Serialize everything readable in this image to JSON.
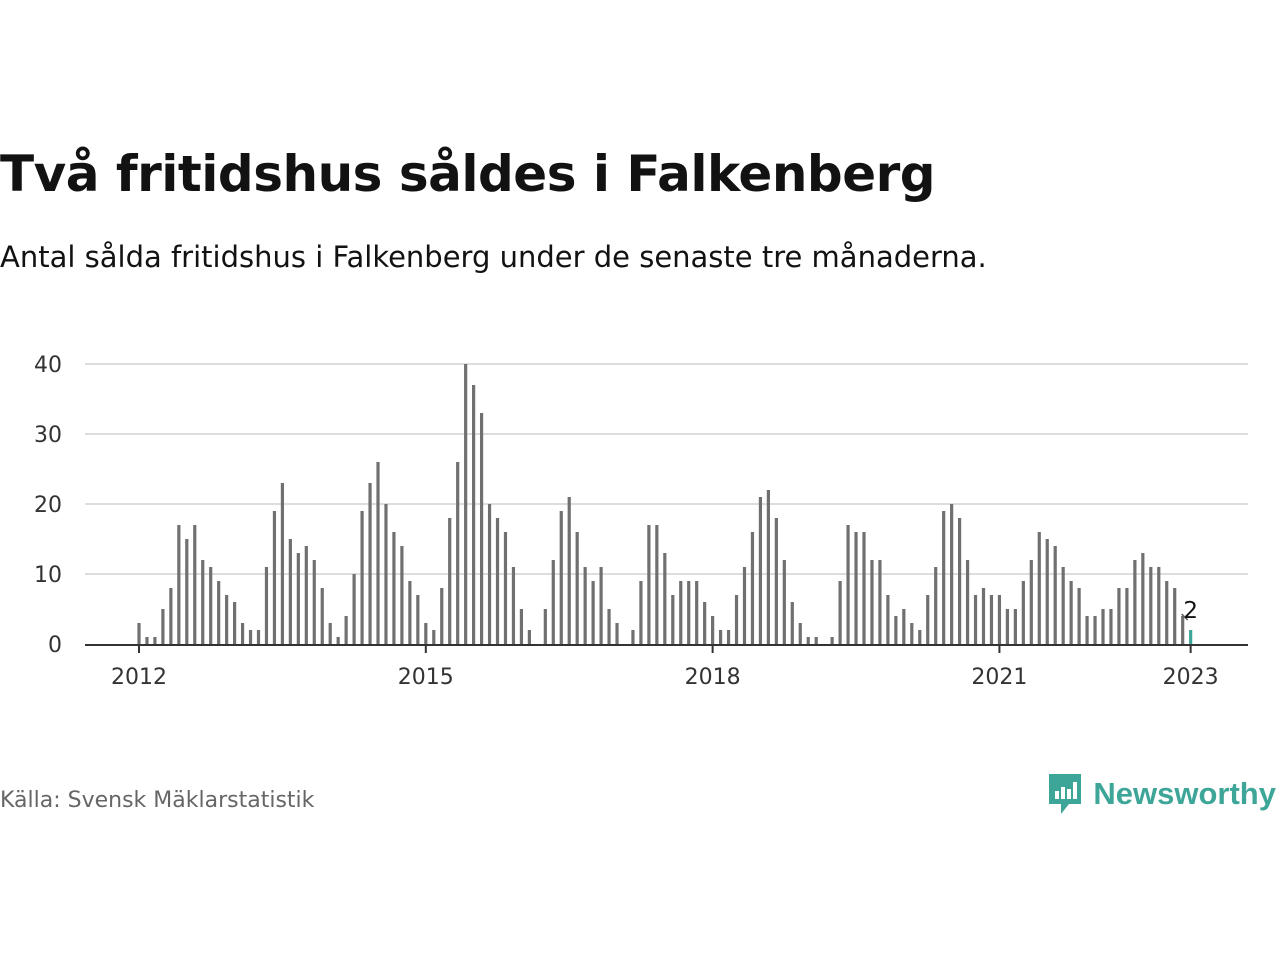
{
  "title": "Två fritidshus såldes i Falkenberg",
  "subtitle": "Antal sålda fritidshus i Falkenberg under de senaste tre månaderna.",
  "source": "Källa: Svensk Mäklarstatistik",
  "brand": {
    "name": "Newsworthy",
    "color": "#3ea699",
    "icon": "newsworthy-logo-icon"
  },
  "colors": {
    "bar": "#707070",
    "highlight": "#3ea699",
    "grid": "#dddddd",
    "axis": "#333333"
  },
  "chart_data": {
    "type": "bar",
    "title": "Två fritidshus såldes i Falkenberg",
    "subtitle": "Antal sålda fritidshus i Falkenberg under de senaste tre månaderna.",
    "start": "2012-01",
    "ylim": [
      0,
      40
    ],
    "yticks": [
      0,
      10,
      20,
      30,
      40
    ],
    "xticks": [
      "2012",
      "2015",
      "2018",
      "2021",
      "2023"
    ],
    "grid": true,
    "highlight_last": true,
    "last_label": "2",
    "values": [
      3,
      1,
      1,
      5,
      8,
      17,
      15,
      17,
      12,
      11,
      9,
      7,
      6,
      3,
      2,
      2,
      11,
      19,
      23,
      15,
      13,
      14,
      12,
      8,
      3,
      1,
      4,
      10,
      19,
      23,
      26,
      20,
      16,
      14,
      9,
      7,
      3,
      2,
      8,
      18,
      26,
      40,
      37,
      33,
      20,
      18,
      16,
      11,
      5,
      2,
      0,
      5,
      12,
      19,
      21,
      16,
      11,
      9,
      11,
      5,
      3,
      0,
      2,
      9,
      17,
      17,
      13,
      7,
      9,
      9,
      9,
      6,
      4,
      2,
      2,
      7,
      11,
      16,
      21,
      22,
      18,
      12,
      6,
      3,
      1,
      1,
      0,
      1,
      9,
      17,
      16,
      16,
      12,
      12,
      7,
      4,
      5,
      3,
      2,
      7,
      11,
      19,
      20,
      18,
      12,
      7,
      8,
      7,
      7,
      5,
      5,
      9,
      12,
      16,
      15,
      14,
      11,
      9,
      8,
      4,
      4,
      5,
      5,
      8,
      8,
      12,
      13,
      11,
      11,
      9,
      8,
      4,
      2
    ]
  }
}
